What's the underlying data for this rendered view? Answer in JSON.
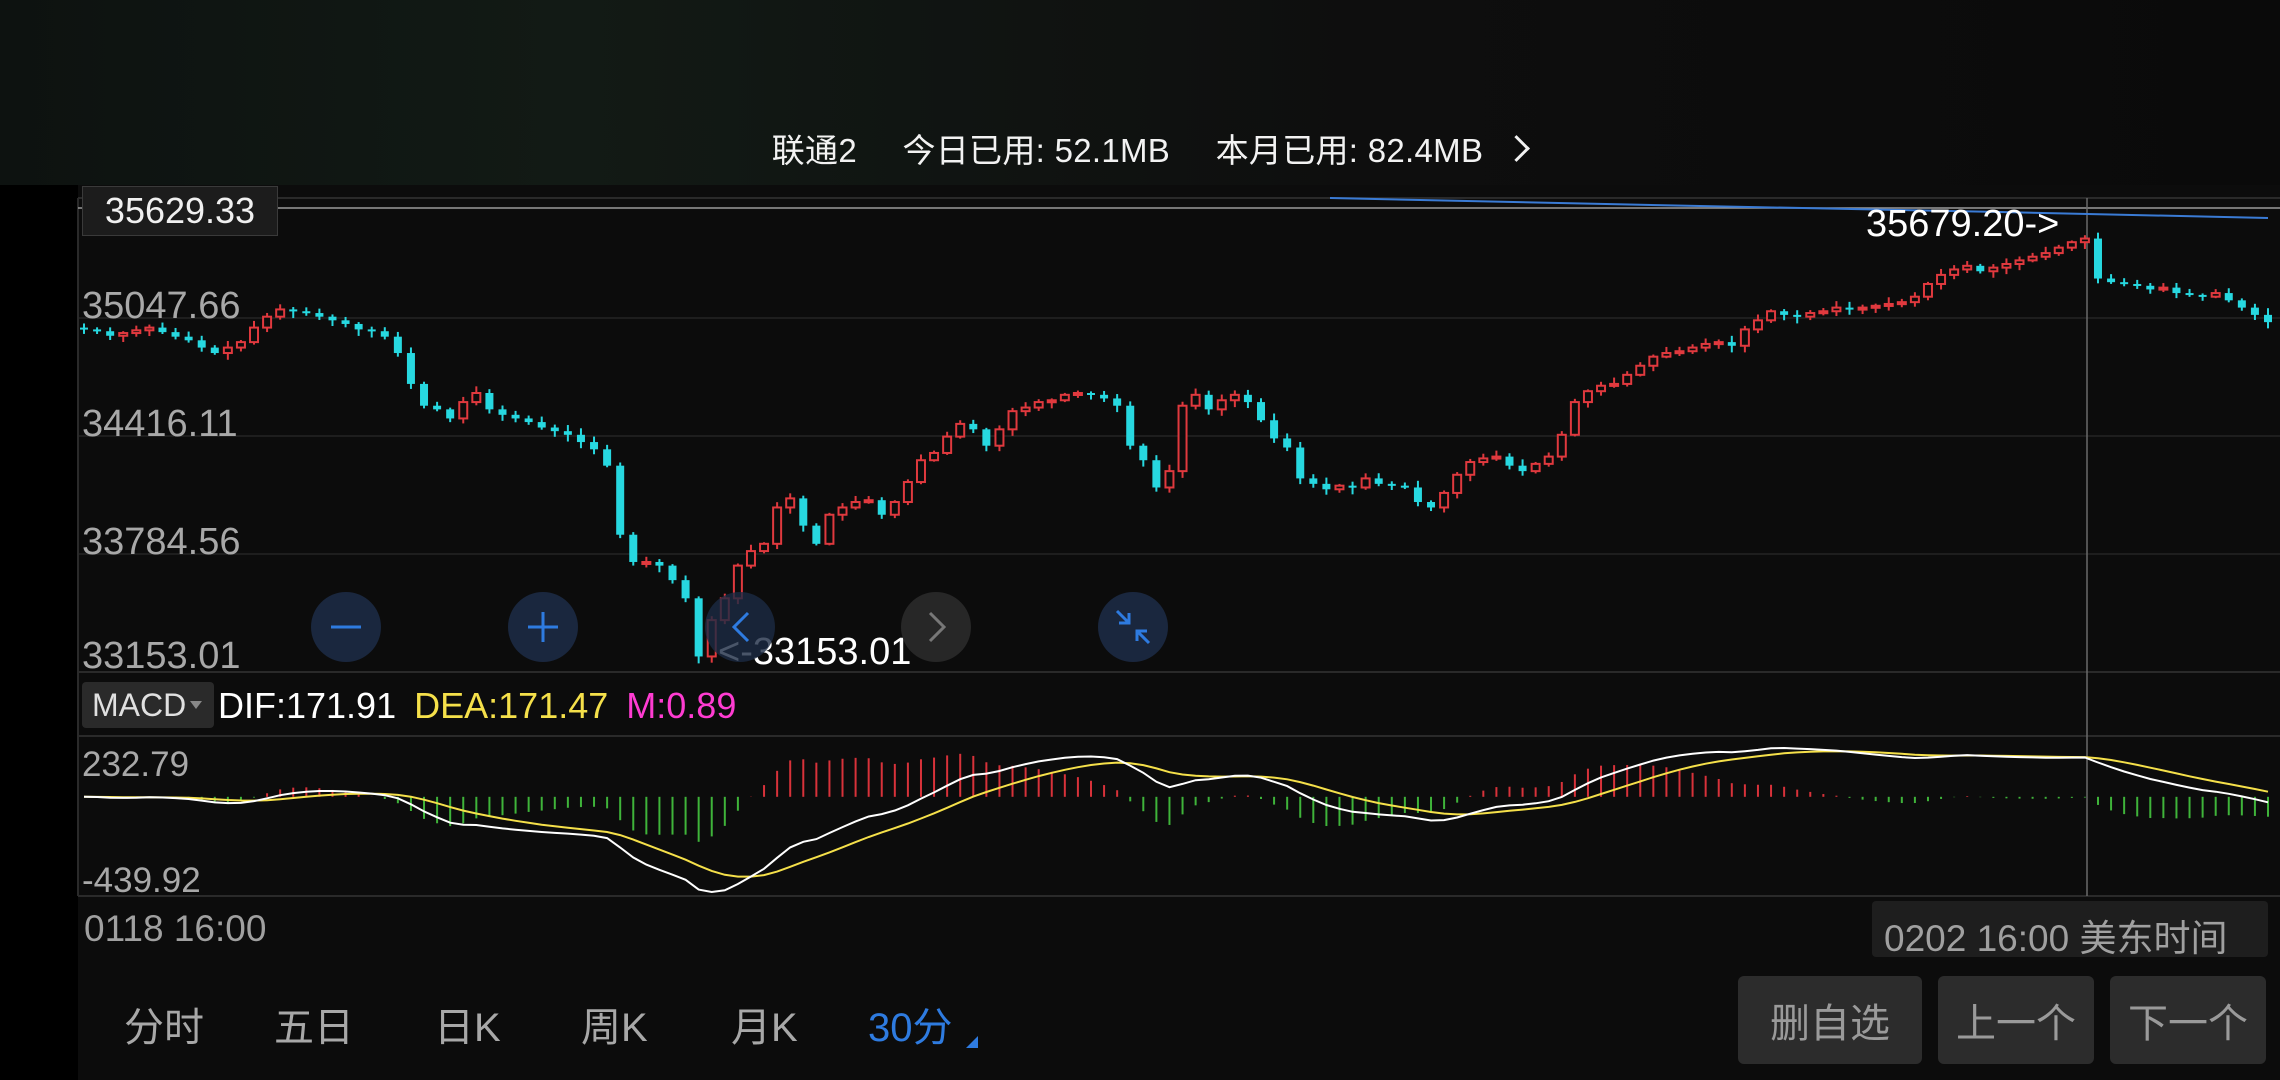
{
  "status_bar": {
    "carrier": "联通2",
    "today_usage": "今日已用: 52.1MB",
    "month_usage": "本月已用: 82.4MB"
  },
  "price_axis": {
    "labels": [
      "35047.66",
      "34416.11",
      "33784.56",
      "33153.01"
    ],
    "highlight": "35629.33"
  },
  "extremes": {
    "high_label": "35679.20->",
    "low_label": "<-33153.01"
  },
  "indicator": {
    "name": "MACD",
    "dif": "DIF:171.91",
    "dea": "DEA:171.47",
    "m": "M:0.89",
    "axis_top": "232.79",
    "axis_bottom": "-439.92"
  },
  "time_axis": {
    "start": "0118 16:00",
    "end": "0202 16:00 美东时间"
  },
  "tabs": [
    {
      "label": "分时",
      "active": false
    },
    {
      "label": "五日",
      "active": false
    },
    {
      "label": "日K",
      "active": false
    },
    {
      "label": "周K",
      "active": false
    },
    {
      "label": "月K",
      "active": false
    },
    {
      "label": "30分",
      "active": true
    }
  ],
  "actions": {
    "remove_watch": "删自选",
    "prev": "上一个",
    "next": "下一个"
  },
  "colors": {
    "up": "#e0393e",
    "down": "#27d8e0",
    "dif": "#ffffff",
    "dea": "#f5e04a",
    "m": "#ff3cd2",
    "accent": "#2e7be0"
  },
  "chart_data": {
    "type": "candlestick",
    "ylim": [
      33153.01,
      35679.2
    ],
    "closes": [
      35000,
      34990,
      34965,
      34980,
      34995,
      35010,
      34985,
      34960,
      34940,
      34900,
      34870,
      34900,
      34930,
      35010,
      35070,
      35110,
      35100,
      35090,
      35070,
      35050,
      35030,
      35000,
      34990,
      34960,
      34870,
      34700,
      34580,
      34560,
      34510,
      34600,
      34650,
      34560,
      34530,
      34510,
      34490,
      34460,
      34440,
      34420,
      34380,
      34340,
      34250,
      33870,
      33720,
      33720,
      33700,
      33620,
      33520,
      33200,
      33400,
      33520,
      33700,
      33780,
      33820,
      34020,
      34070,
      33920,
      33820,
      33980,
      34020,
      34050,
      34060,
      33980,
      34050,
      34160,
      34280,
      34320,
      34410,
      34480,
      34450,
      34360,
      34450,
      34550,
      34570,
      34600,
      34610,
      34640,
      34650,
      34640,
      34620,
      34580,
      34360,
      34280,
      34130,
      34220,
      34580,
      34640,
      34560,
      34610,
      34640,
      34600,
      34500,
      34400,
      34350,
      34180,
      34150,
      34120,
      34140,
      34130,
      34180,
      34150,
      34140,
      34130,
      34050,
      34020,
      34100,
      34200,
      34270,
      34290,
      34300,
      34250,
      34220,
      34260,
      34300,
      34420,
      34600,
      34660,
      34690,
      34700,
      34750,
      34800,
      34850,
      34870,
      34880,
      34900,
      34920,
      34930,
      34910,
      35000,
      35050,
      35100,
      35080,
      35070,
      35090,
      35100,
      35120,
      35110,
      35120,
      35130,
      35140,
      35150,
      35180,
      35250,
      35300,
      35330,
      35350,
      35320,
      35340,
      35360,
      35380,
      35400,
      35420,
      35450,
      35480,
      35500,
      35280,
      35260,
      35250,
      35240,
      35220,
      35230,
      35200,
      35190,
      35180,
      35200,
      35160,
      35120,
      35080,
      35040
    ]
  }
}
